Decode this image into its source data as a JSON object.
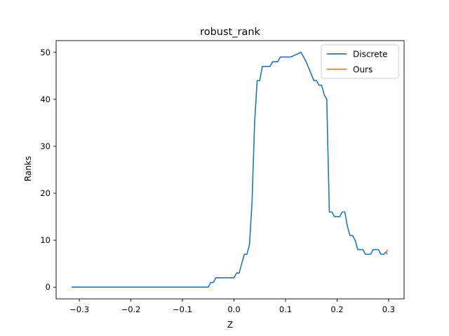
{
  "chart_data": {
    "type": "line",
    "title": "robust_rank",
    "xlabel": "Z",
    "ylabel": "Ranks",
    "xlim": [
      -0.345,
      0.33
    ],
    "ylim": [
      -2.5,
      52.5
    ],
    "xticks": [
      -0.3,
      -0.2,
      -0.1,
      0.0,
      0.1,
      0.2,
      0.3
    ],
    "xtick_labels": [
      "−0.3",
      "−0.2",
      "−0.1",
      "0.0",
      "0.1",
      "0.2",
      "0.3"
    ],
    "yticks": [
      0,
      10,
      20,
      30,
      40,
      50
    ],
    "ytick_labels": [
      "0",
      "10",
      "20",
      "30",
      "40",
      "50"
    ],
    "grid": false,
    "legend": "top-right",
    "series": [
      {
        "name": "Discrete",
        "color": "#1f77b4",
        "points": [
          [
            -0.315,
            0
          ],
          [
            -0.05,
            0
          ],
          [
            -0.045,
            1
          ],
          [
            -0.04,
            1
          ],
          [
            -0.035,
            2
          ],
          [
            -0.02,
            2
          ],
          [
            -0.01,
            2
          ],
          [
            -0.005,
            2
          ],
          [
            0.0,
            2
          ],
          [
            0.005,
            3
          ],
          [
            0.01,
            3
          ],
          [
            0.02,
            7
          ],
          [
            0.025,
            7
          ],
          [
            0.03,
            9
          ],
          [
            0.035,
            18
          ],
          [
            0.04,
            35
          ],
          [
            0.045,
            44
          ],
          [
            0.05,
            44
          ],
          [
            0.055,
            47
          ],
          [
            0.07,
            47
          ],
          [
            0.075,
            48
          ],
          [
            0.085,
            48
          ],
          [
            0.09,
            49
          ],
          [
            0.11,
            49
          ],
          [
            0.13,
            50
          ],
          [
            0.14,
            48
          ],
          [
            0.155,
            44
          ],
          [
            0.16,
            44
          ],
          [
            0.165,
            43
          ],
          [
            0.17,
            43
          ],
          [
            0.175,
            41
          ],
          [
            0.18,
            40
          ],
          [
            0.185,
            16
          ],
          [
            0.19,
            16
          ],
          [
            0.195,
            15
          ],
          [
            0.205,
            15
          ],
          [
            0.21,
            16
          ],
          [
            0.215,
            16
          ],
          [
            0.22,
            13
          ],
          [
            0.225,
            11
          ],
          [
            0.23,
            11
          ],
          [
            0.235,
            10
          ],
          [
            0.24,
            8
          ],
          [
            0.25,
            8
          ],
          [
            0.255,
            7
          ],
          [
            0.265,
            7
          ],
          [
            0.27,
            8
          ],
          [
            0.28,
            8
          ],
          [
            0.285,
            7
          ],
          [
            0.29,
            7
          ],
          [
            0.295,
            7.5
          ],
          [
            0.297,
            7
          ]
        ]
      },
      {
        "name": "Ours",
        "color": "#ff7f0e",
        "points": [
          [
            0.295,
            7.2
          ],
          [
            0.298,
            8
          ]
        ]
      }
    ]
  }
}
